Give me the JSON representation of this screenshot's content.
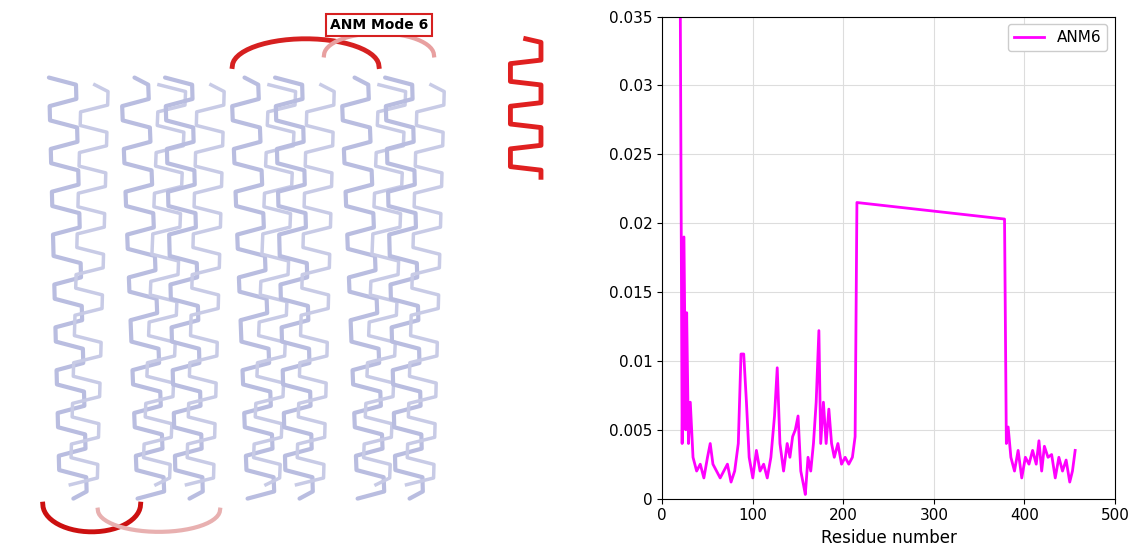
{
  "structure_panel": {
    "label": "ANM Mode 6"
  },
  "chart_data": {
    "type": "line",
    "x": [
      20,
      22,
      24,
      26,
      27,
      29,
      31,
      34,
      38,
      42,
      46,
      50,
      53,
      56,
      60,
      64,
      68,
      72,
      76,
      80,
      84,
      87,
      90,
      93,
      96,
      100,
      104,
      108,
      112,
      116,
      120,
      124,
      127,
      130,
      134,
      138,
      141,
      144,
      147,
      150,
      153,
      156,
      158,
      161,
      164,
      167,
      170,
      173,
      175,
      178,
      181,
      184,
      187,
      190,
      194,
      198,
      202,
      206,
      210,
      213,
      215,
      378,
      380,
      382,
      385,
      389,
      393,
      397,
      401,
      405,
      409,
      413,
      416,
      419,
      422,
      426,
      430,
      434,
      438,
      442,
      446,
      450,
      453,
      456
    ],
    "series": [
      {
        "name": "ANM6",
        "color": "#ff00ff",
        "values": [
          0.035,
          0.004,
          0.019,
          0.005,
          0.0135,
          0.004,
          0.007,
          0.003,
          0.002,
          0.0025,
          0.0015,
          0.003,
          0.004,
          0.0025,
          0.002,
          0.0015,
          0.002,
          0.0025,
          0.0012,
          0.002,
          0.004,
          0.0105,
          0.0105,
          0.007,
          0.003,
          0.0015,
          0.0035,
          0.002,
          0.0025,
          0.0015,
          0.003,
          0.006,
          0.0095,
          0.004,
          0.002,
          0.004,
          0.003,
          0.0045,
          0.005,
          0.006,
          0.002,
          0.001,
          0.0003,
          0.003,
          0.002,
          0.004,
          0.007,
          0.0122,
          0.004,
          0.007,
          0.004,
          0.0065,
          0.004,
          0.003,
          0.004,
          0.0025,
          0.003,
          0.0025,
          0.003,
          0.0045,
          0.0215,
          0.0203,
          0.004,
          0.0052,
          0.003,
          0.002,
          0.0035,
          0.0015,
          0.003,
          0.0025,
          0.0035,
          0.0025,
          0.0042,
          0.002,
          0.0038,
          0.003,
          0.0032,
          0.0015,
          0.003,
          0.002,
          0.0028,
          0.0012,
          0.002,
          0.0035
        ]
      }
    ],
    "x_label": "Residue number",
    "xlim": [
      0,
      500
    ],
    "xticks": [
      0,
      100,
      200,
      300,
      400,
      500
    ],
    "ylim": [
      0,
      0.035
    ],
    "yticks": [
      0,
      0.005,
      0.01,
      0.015,
      0.02,
      0.025,
      0.03,
      0.035
    ],
    "grid": true,
    "legend": "upper right"
  }
}
